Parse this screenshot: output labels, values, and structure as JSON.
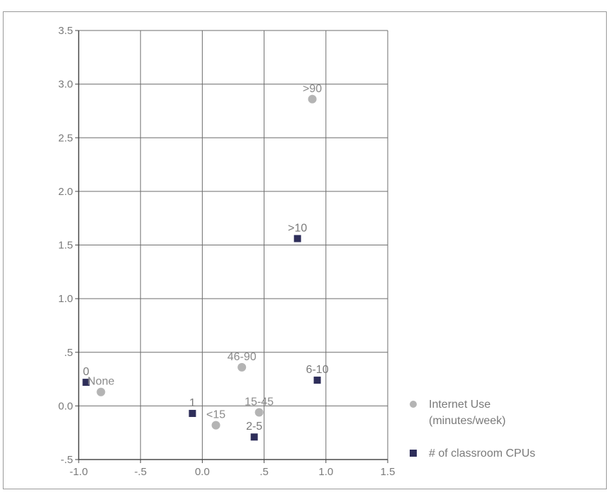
{
  "chart_data": {
    "type": "scatter",
    "title": "",
    "xlabel": "",
    "ylabel": "",
    "xlim": [
      -1.0,
      1.5
    ],
    "ylim": [
      -0.5,
      3.5
    ],
    "grid": true,
    "x_ticks": [
      {
        "value": -1.0,
        "label": "-1.0"
      },
      {
        "value": -0.5,
        "label": "-.5"
      },
      {
        "value": 0.0,
        "label": "0.0"
      },
      {
        "value": 0.5,
        "label": ".5"
      },
      {
        "value": 1.0,
        "label": "1.0"
      },
      {
        "value": 1.5,
        "label": "1.5"
      }
    ],
    "y_ticks": [
      {
        "value": 3.5,
        "label": "3.5"
      },
      {
        "value": 3.0,
        "label": "3.0"
      },
      {
        "value": 2.5,
        "label": "2.5"
      },
      {
        "value": 2.0,
        "label": "2.0"
      },
      {
        "value": 1.5,
        "label": "1.5"
      },
      {
        "value": 1.0,
        "label": "1.0"
      },
      {
        "value": 0.5,
        "label": ".5"
      },
      {
        "value": 0.0,
        "label": "0.0"
      },
      {
        "value": -0.5,
        "label": "-.5"
      }
    ],
    "legend_position": "bottom-right",
    "series": [
      {
        "name": "Internet Use (minutes/week)",
        "name_lines": [
          "Internet Use",
          "(minutes/week)"
        ],
        "marker": "circle",
        "color": "#b4b4b4",
        "label_color": "#8a8a8a",
        "points": [
          {
            "label": ">90",
            "x": 0.89,
            "y": 2.86
          },
          {
            "label": "46-90",
            "x": 0.32,
            "y": 0.36
          },
          {
            "label": "None",
            "x": -0.82,
            "y": 0.13
          },
          {
            "label": "15-45",
            "x": 0.46,
            "y": -0.06
          },
          {
            "label": "<15",
            "x": 0.11,
            "y": -0.18
          }
        ]
      },
      {
        "name": "# of classroom CPUs",
        "name_lines": [
          "# of classroom CPUs"
        ],
        "marker": "square",
        "color": "#2e2e5a",
        "label_color": "#7a7a7a",
        "points": [
          {
            "label": ">10",
            "x": 0.77,
            "y": 1.56
          },
          {
            "label": "6-10",
            "x": 0.93,
            "y": 0.24
          },
          {
            "label": "0",
            "x": -0.94,
            "y": 0.22
          },
          {
            "label": "1",
            "x": -0.08,
            "y": -0.07
          },
          {
            "label": "2-5",
            "x": 0.42,
            "y": -0.29
          }
        ]
      }
    ]
  }
}
